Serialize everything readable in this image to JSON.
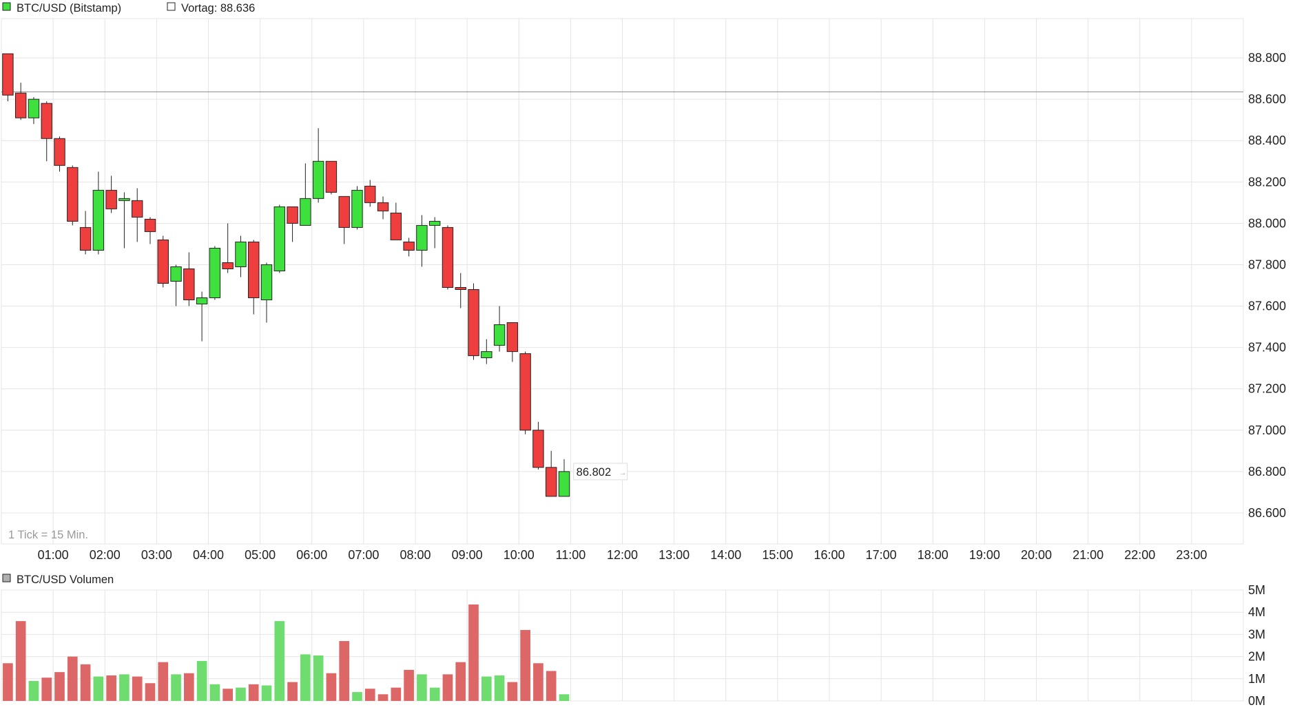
{
  "colors": {
    "up": "#3ee03e",
    "down": "#ef3e3e",
    "vol_up": "#6fdc6f",
    "vol_down": "#dd6666",
    "grid": "#e4e4e4",
    "text": "#222222",
    "muted": "#999999",
    "prev_close_line": "#888888"
  },
  "icons": {
    "price_legend": "green-square-icon",
    "prev_legend": "hollow-square-icon",
    "volume_legend": "gray-square-icon"
  },
  "chart_data": [
    {
      "type": "candlestick",
      "legend_title": "BTC/USD (Bitstamp)",
      "prev_close_label": "Vortag: 88.636",
      "prev_close": 88636,
      "tick_note": "1 Tick = 15 Min.",
      "last_price_label": "86.802",
      "y_ticks": [
        88800,
        88600,
        88400,
        88200,
        88000,
        87800,
        87600,
        87400,
        87200,
        87000,
        86800,
        86600
      ],
      "y_tick_labels": [
        "88.800",
        "88.600",
        "88.400",
        "88.200",
        "88.000",
        "87.800",
        "87.600",
        "87.400",
        "87.200",
        "87.000",
        "86.800",
        "86.600"
      ],
      "x_tick_labels": [
        "01:00",
        "02:00",
        "03:00",
        "04:00",
        "05:00",
        "06:00",
        "07:00",
        "08:00",
        "09:00",
        "10:00",
        "11:00",
        "12:00",
        "13:00",
        "14:00",
        "15:00",
        "16:00",
        "17:00",
        "18:00",
        "19:00",
        "20:00",
        "21:00",
        "22:00",
        "23:00"
      ],
      "x_range_hours": [
        0,
        24
      ],
      "y_range": [
        86450,
        88990
      ],
      "grid": true,
      "candles": [
        {
          "t": "00:00",
          "o": 88820,
          "h": 88820,
          "l": 88590,
          "c": 88620
        },
        {
          "t": "00:15",
          "o": 88630,
          "h": 88680,
          "l": 88500,
          "c": 88510
        },
        {
          "t": "00:30",
          "o": 88510,
          "h": 88610,
          "l": 88480,
          "c": 88600
        },
        {
          "t": "00:45",
          "o": 88580,
          "h": 88590,
          "l": 88300,
          "c": 88410
        },
        {
          "t": "01:00",
          "o": 88410,
          "h": 88420,
          "l": 88250,
          "c": 88280
        },
        {
          "t": "01:15",
          "o": 88270,
          "h": 88280,
          "l": 87990,
          "c": 88010
        },
        {
          "t": "01:30",
          "o": 87980,
          "h": 88060,
          "l": 87850,
          "c": 87870
        },
        {
          "t": "01:45",
          "o": 87870,
          "h": 88250,
          "l": 87850,
          "c": 88160
        },
        {
          "t": "02:00",
          "o": 88160,
          "h": 88230,
          "l": 88050,
          "c": 88070
        },
        {
          "t": "02:15",
          "o": 88110,
          "h": 88150,
          "l": 87880,
          "c": 88120
        },
        {
          "t": "02:30",
          "o": 88110,
          "h": 88170,
          "l": 87910,
          "c": 88030
        },
        {
          "t": "02:45",
          "o": 88020,
          "h": 88030,
          "l": 87900,
          "c": 87960
        },
        {
          "t": "03:00",
          "o": 87920,
          "h": 87940,
          "l": 87690,
          "c": 87710
        },
        {
          "t": "03:15",
          "o": 87720,
          "h": 87800,
          "l": 87600,
          "c": 87790
        },
        {
          "t": "03:30",
          "o": 87780,
          "h": 87860,
          "l": 87600,
          "c": 87630
        },
        {
          "t": "03:45",
          "o": 87610,
          "h": 87670,
          "l": 87430,
          "c": 87640
        },
        {
          "t": "04:00",
          "o": 87640,
          "h": 87890,
          "l": 87630,
          "c": 87880
        },
        {
          "t": "04:15",
          "o": 87810,
          "h": 88000,
          "l": 87760,
          "c": 87780
        },
        {
          "t": "04:30",
          "o": 87790,
          "h": 87940,
          "l": 87740,
          "c": 87910
        },
        {
          "t": "04:45",
          "o": 87910,
          "h": 87920,
          "l": 87560,
          "c": 87640
        },
        {
          "t": "05:00",
          "o": 87630,
          "h": 87810,
          "l": 87520,
          "c": 87800
        },
        {
          "t": "05:15",
          "o": 87770,
          "h": 88090,
          "l": 87760,
          "c": 88080
        },
        {
          "t": "05:30",
          "o": 88080,
          "h": 88080,
          "l": 87910,
          "c": 88000
        },
        {
          "t": "05:45",
          "o": 87990,
          "h": 88290,
          "l": 87990,
          "c": 88120
        },
        {
          "t": "06:00",
          "o": 88120,
          "h": 88460,
          "l": 88100,
          "c": 88300
        },
        {
          "t": "06:15",
          "o": 88300,
          "h": 88300,
          "l": 88140,
          "c": 88150
        },
        {
          "t": "06:30",
          "o": 88130,
          "h": 88130,
          "l": 87900,
          "c": 87980
        },
        {
          "t": "06:45",
          "o": 87980,
          "h": 88180,
          "l": 87970,
          "c": 88160
        },
        {
          "t": "07:00",
          "o": 88180,
          "h": 88210,
          "l": 88080,
          "c": 88100
        },
        {
          "t": "07:15",
          "o": 88100,
          "h": 88130,
          "l": 88020,
          "c": 88060
        },
        {
          "t": "07:30",
          "o": 88050,
          "h": 88100,
          "l": 87920,
          "c": 87920
        },
        {
          "t": "07:45",
          "o": 87910,
          "h": 87930,
          "l": 87840,
          "c": 87870
        },
        {
          "t": "08:00",
          "o": 87870,
          "h": 88040,
          "l": 87790,
          "c": 87990
        },
        {
          "t": "08:15",
          "o": 87990,
          "h": 88030,
          "l": 87880,
          "c": 88010
        },
        {
          "t": "08:30",
          "o": 87980,
          "h": 87990,
          "l": 87680,
          "c": 87690
        },
        {
          "t": "08:45",
          "o": 87690,
          "h": 87760,
          "l": 87590,
          "c": 87680
        },
        {
          "t": "09:00",
          "o": 87680,
          "h": 87710,
          "l": 87340,
          "c": 87360
        },
        {
          "t": "09:15",
          "o": 87350,
          "h": 87440,
          "l": 87320,
          "c": 87380
        },
        {
          "t": "09:30",
          "o": 87410,
          "h": 87600,
          "l": 87380,
          "c": 87510
        },
        {
          "t": "09:45",
          "o": 87520,
          "h": 87520,
          "l": 87330,
          "c": 87380
        },
        {
          "t": "10:00",
          "o": 87370,
          "h": 87380,
          "l": 86980,
          "c": 87000
        },
        {
          "t": "10:15",
          "o": 87000,
          "h": 87040,
          "l": 86810,
          "c": 86820
        },
        {
          "t": "10:30",
          "o": 86820,
          "h": 86900,
          "l": 86680,
          "c": 86680
        },
        {
          "t": "10:45",
          "o": 86680,
          "h": 86860,
          "l": 86680,
          "c": 86800
        }
      ]
    },
    {
      "type": "bar",
      "legend_title": "BTC/USD Volumen",
      "y_ticks": [
        5,
        4,
        3,
        2,
        1,
        0
      ],
      "y_tick_labels": [
        "5M",
        "4M",
        "3M",
        "2M",
        "1M",
        "0M"
      ],
      "y_range": [
        0,
        5
      ],
      "unit": "M",
      "values": [
        1.7,
        3.6,
        0.9,
        1.05,
        1.3,
        2.0,
        1.65,
        1.1,
        1.15,
        1.2,
        1.1,
        0.8,
        1.75,
        1.2,
        1.25,
        1.8,
        0.75,
        0.55,
        0.6,
        0.75,
        0.7,
        3.6,
        0.85,
        2.1,
        2.05,
        1.25,
        2.7,
        0.4,
        0.55,
        0.3,
        0.6,
        1.4,
        1.2,
        0.6,
        1.2,
        1.75,
        4.35,
        1.1,
        1.15,
        0.85,
        3.2,
        1.7,
        1.35,
        0.3
      ],
      "directions": [
        "down",
        "down",
        "up",
        "down",
        "down",
        "down",
        "down",
        "up",
        "down",
        "up",
        "down",
        "down",
        "down",
        "up",
        "down",
        "up",
        "up",
        "down",
        "up",
        "down",
        "up",
        "up",
        "down",
        "up",
        "up",
        "down",
        "down",
        "up",
        "down",
        "down",
        "down",
        "down",
        "up",
        "up",
        "down",
        "down",
        "down",
        "up",
        "up",
        "down",
        "down",
        "down",
        "down",
        "up"
      ]
    }
  ]
}
